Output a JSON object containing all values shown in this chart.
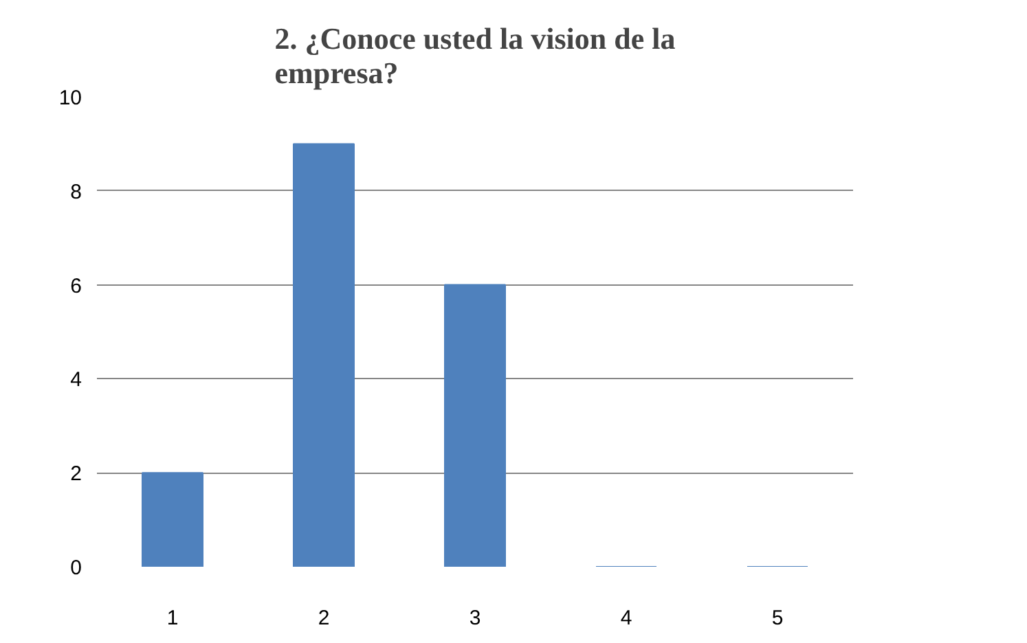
{
  "chart_data": {
    "type": "bar",
    "title": "2. ¿Conoce usted la vision de la empresa?",
    "categories": [
      "1",
      "2",
      "3",
      "4",
      "5"
    ],
    "values": [
      2,
      9,
      6,
      0,
      0
    ],
    "color": "#4f81bd",
    "ylim": [
      0,
      10
    ],
    "yticks": [
      0,
      2,
      4,
      6,
      8,
      10
    ],
    "grid": "y"
  }
}
